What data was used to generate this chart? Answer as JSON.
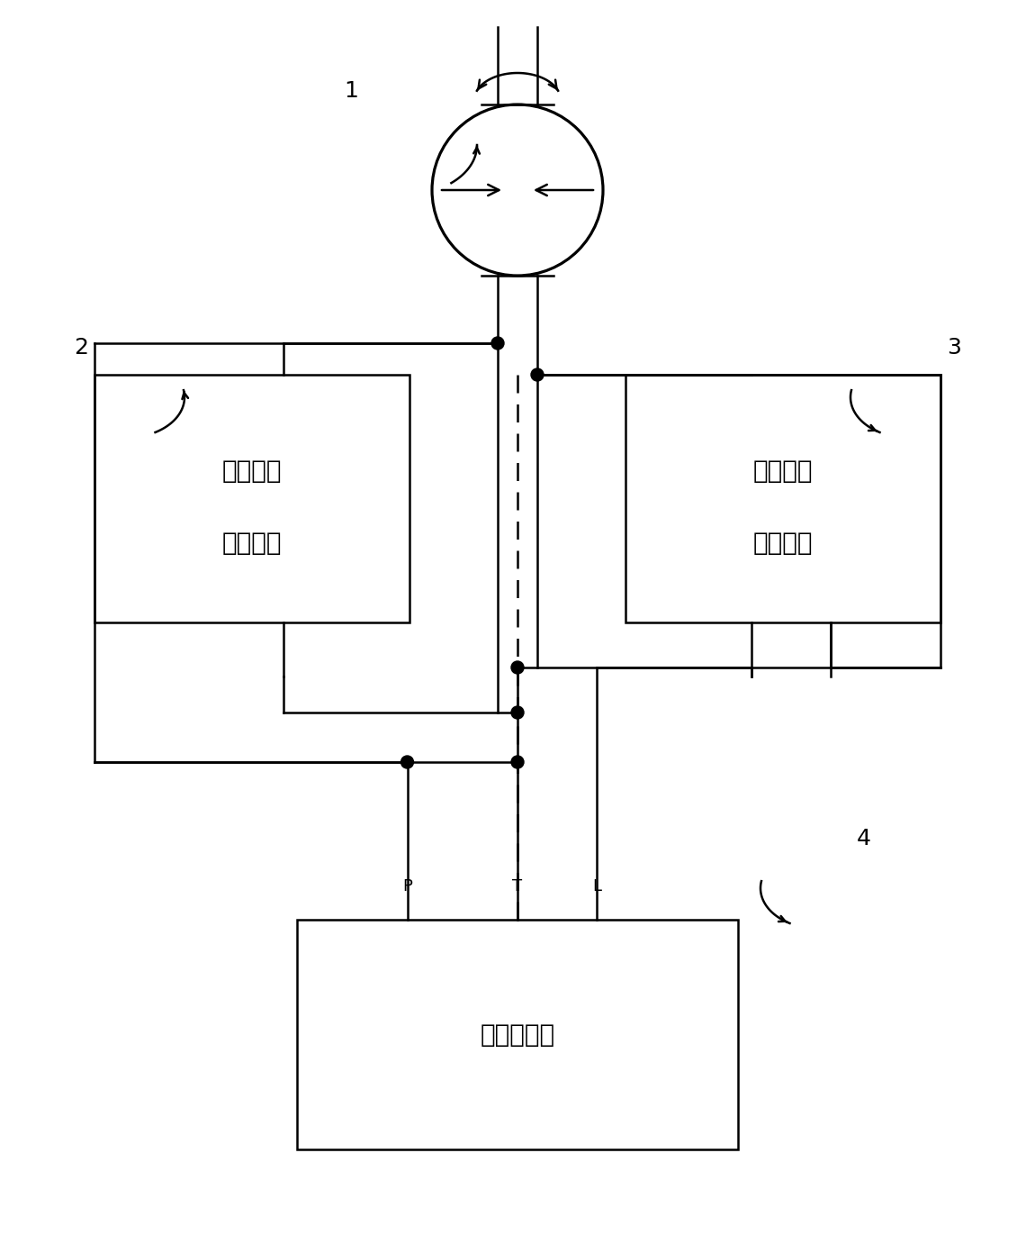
{
  "bg_color": "#ffffff",
  "line_color": "#000000",
  "lw": 1.8,
  "box2_label_line1": "电动控制",
  "box2_label_line2": "液压回路",
  "box3_label_line1": "手动控制",
  "box3_label_line2": "液压回路",
  "box4_label": "液压动力源",
  "label1": "1",
  "label2": "2",
  "label3": "3",
  "label4": "4",
  "ptl_p": "P",
  "ptl_t": "T",
  "ptl_l": "L",
  "font_size_label": 18,
  "font_size_box": 20,
  "font_size_ptl": 13,
  "dot_r": 0.07
}
